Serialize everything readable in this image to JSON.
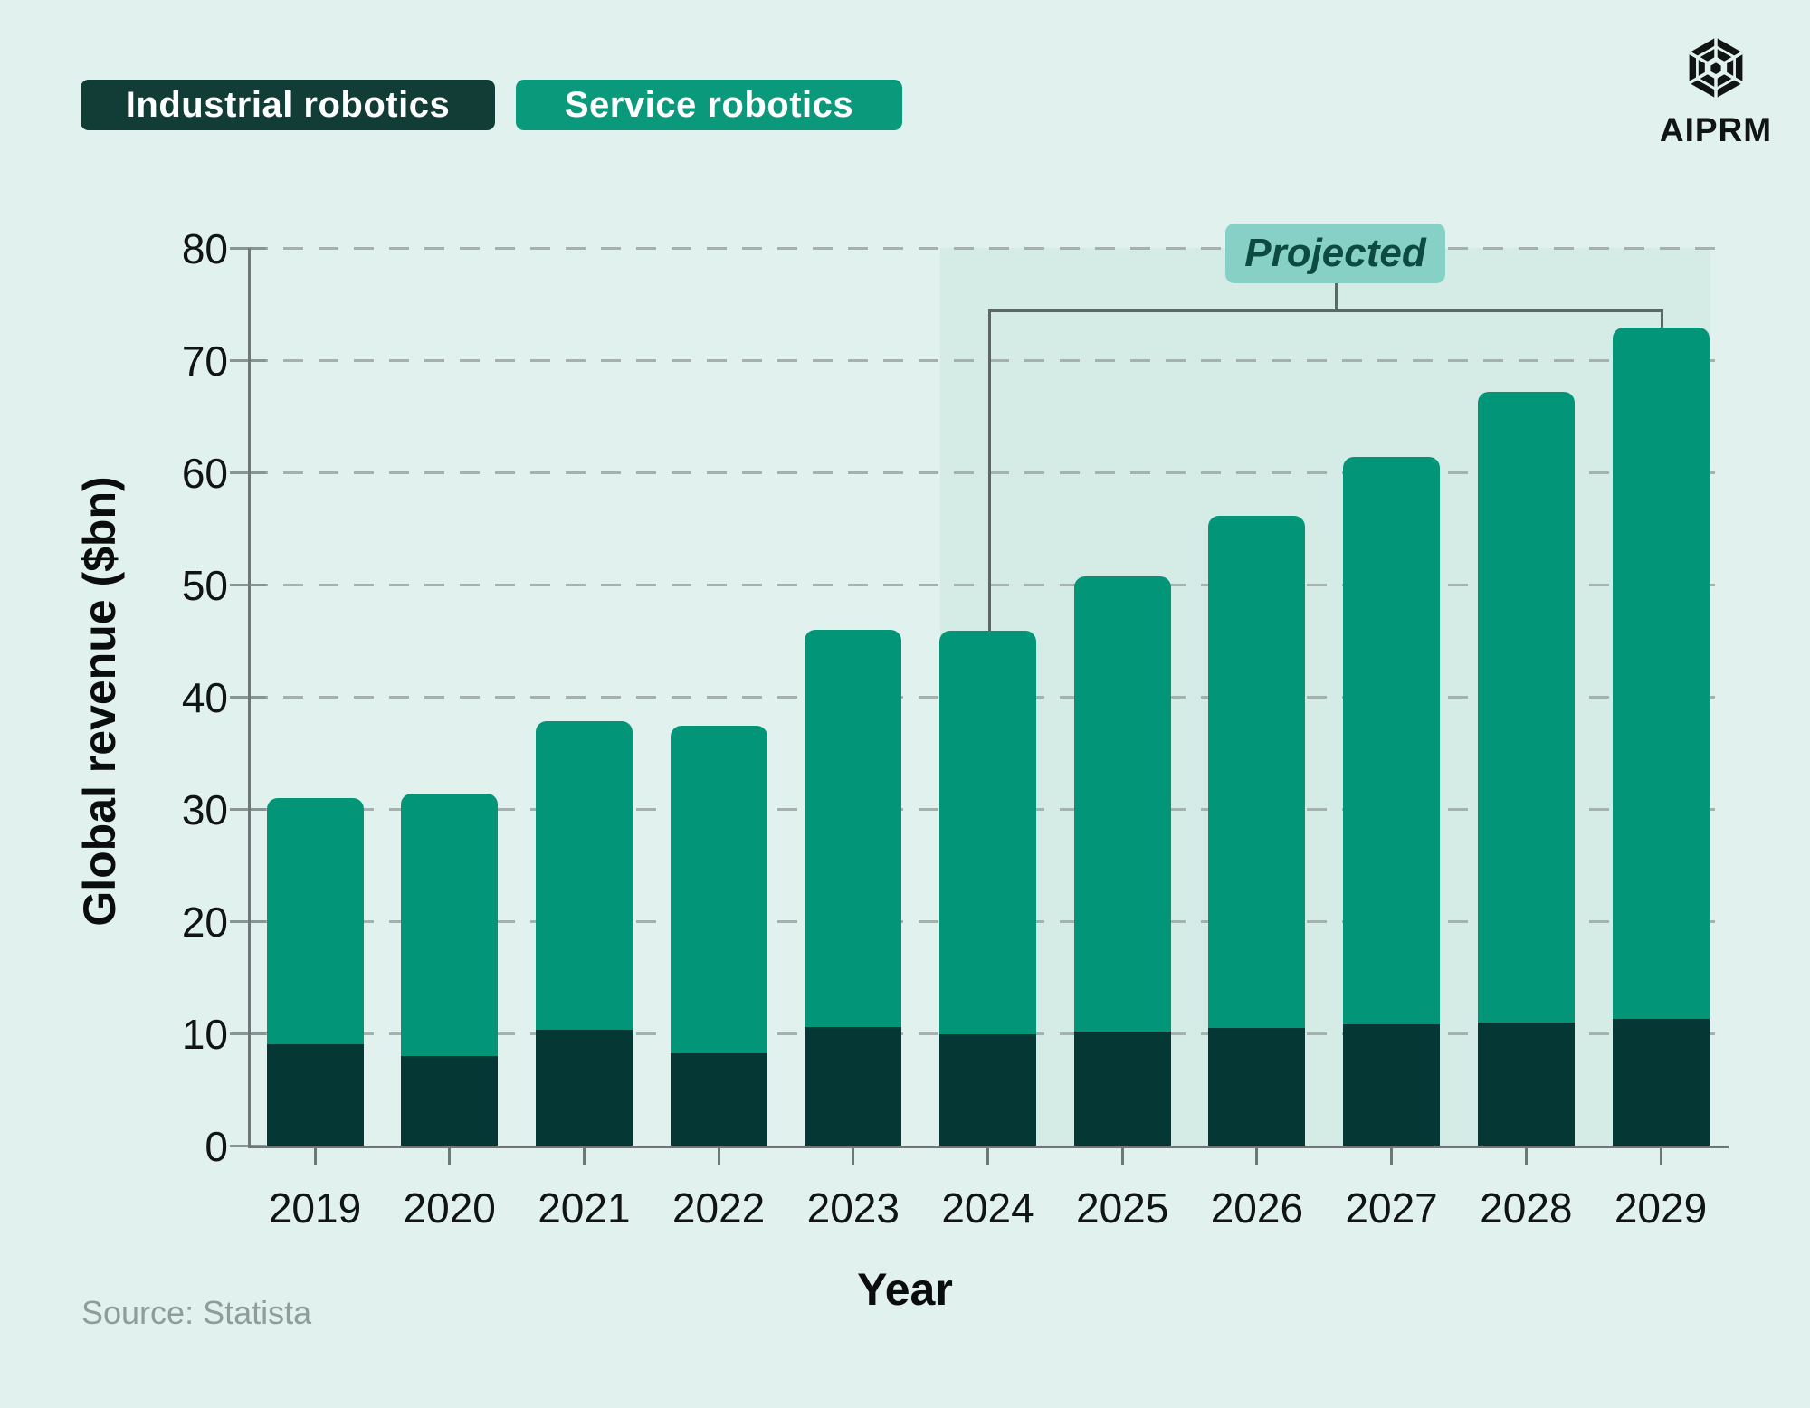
{
  "page": {
    "background": "#e1f2ee"
  },
  "legend": {
    "items": [
      {
        "label": "Industrial robotics",
        "color": "#123c36"
      },
      {
        "label": "Service robotics",
        "color": "#0a9a7b"
      }
    ]
  },
  "logo": {
    "text": "AIPRM",
    "icon": "hexagon-cube-icon"
  },
  "annotation": {
    "label": "Projected",
    "bg_color": "#87d0c6",
    "text_color": "#0d4a42",
    "start_year": "2024",
    "end_year": "2029"
  },
  "source": {
    "text": "Source: Statista"
  },
  "chart_data": {
    "type": "bar",
    "stacked": true,
    "xlabel": "Year",
    "ylabel": "Global revenue ($bn)",
    "ylim": [
      0,
      80
    ],
    "ytick_step": 10,
    "yticks": [
      0,
      10,
      20,
      30,
      40,
      50,
      60,
      70,
      80
    ],
    "grid": "dashed-horizontal",
    "legend_position": "top-left",
    "categories": [
      "2019",
      "2020",
      "2021",
      "2022",
      "2023",
      "2024",
      "2025",
      "2026",
      "2027",
      "2028",
      "2029"
    ],
    "series": [
      {
        "name": "Industrial robotics",
        "color": "#053834",
        "values": [
          9.0,
          8.0,
          10.3,
          8.2,
          10.6,
          9.9,
          10.2,
          10.5,
          10.8,
          11.0,
          11.3
        ]
      },
      {
        "name": "Service robotics",
        "color": "#029577",
        "values": [
          22.0,
          23.4,
          27.5,
          29.2,
          35.4,
          36.0,
          40.5,
          45.6,
          50.6,
          56.2,
          61.6
        ]
      }
    ],
    "totals": [
      31.0,
      31.4,
      37.8,
      37.4,
      46.0,
      45.9,
      50.7,
      56.1,
      61.4,
      67.2,
      72.9
    ],
    "projected_years": [
      "2024",
      "2025",
      "2026",
      "2027",
      "2028",
      "2029"
    ]
  }
}
